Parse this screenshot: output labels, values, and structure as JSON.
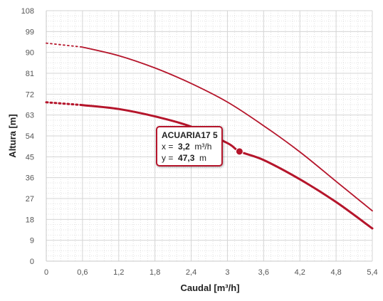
{
  "chart_data": {
    "type": "line",
    "xlabel": "Caudal  [m³/h]",
    "ylabel": "Altura [m]",
    "xlim": [
      0,
      5.4
    ],
    "ylim": [
      0,
      108
    ],
    "x_ticks": [
      "0",
      "0,6",
      "1,2",
      "1,8",
      "2,4",
      "3",
      "3,6",
      "4,2",
      "4,8",
      "5,4"
    ],
    "y_ticks": [
      "0",
      "9",
      "18",
      "27",
      "36",
      "45",
      "54",
      "63",
      "72",
      "81",
      "90",
      "99",
      "108"
    ],
    "grid": true,
    "series": [
      {
        "color": "#b5152b",
        "highlighted": false,
        "dotted_x": [
          0,
          0.6
        ],
        "dotted_y": [
          94,
          92.3
        ],
        "x": [
          0.6,
          1.2,
          1.8,
          2.4,
          3.0,
          3.6,
          4.2,
          4.8,
          5.4
        ],
        "y": [
          92.3,
          88.6,
          83.3,
          76.6,
          68.6,
          58.4,
          47.1,
          34.4,
          21.7
        ]
      },
      {
        "name": "ACUARIA17 5",
        "color": "#b5152b",
        "highlighted": true,
        "dotted_x": [
          0,
          0.6
        ],
        "dotted_y": [
          68.5,
          67.3
        ],
        "x": [
          0.6,
          1.2,
          1.8,
          2.4,
          3.0,
          3.2,
          3.6,
          4.2,
          4.8,
          5.4
        ],
        "y": [
          67.3,
          65.6,
          62.4,
          58.0,
          50.9,
          47.3,
          43.6,
          35.3,
          25.5,
          14.1
        ]
      }
    ],
    "tooltip": {
      "title": "ACUARIA17 5",
      "x_label": "x =",
      "x_value": "3,2",
      "x_unit": "m³/h",
      "y_label": "y =",
      "y_value": "47,3",
      "y_unit": "m",
      "point_x": 3.2,
      "point_y": 47.3
    }
  }
}
